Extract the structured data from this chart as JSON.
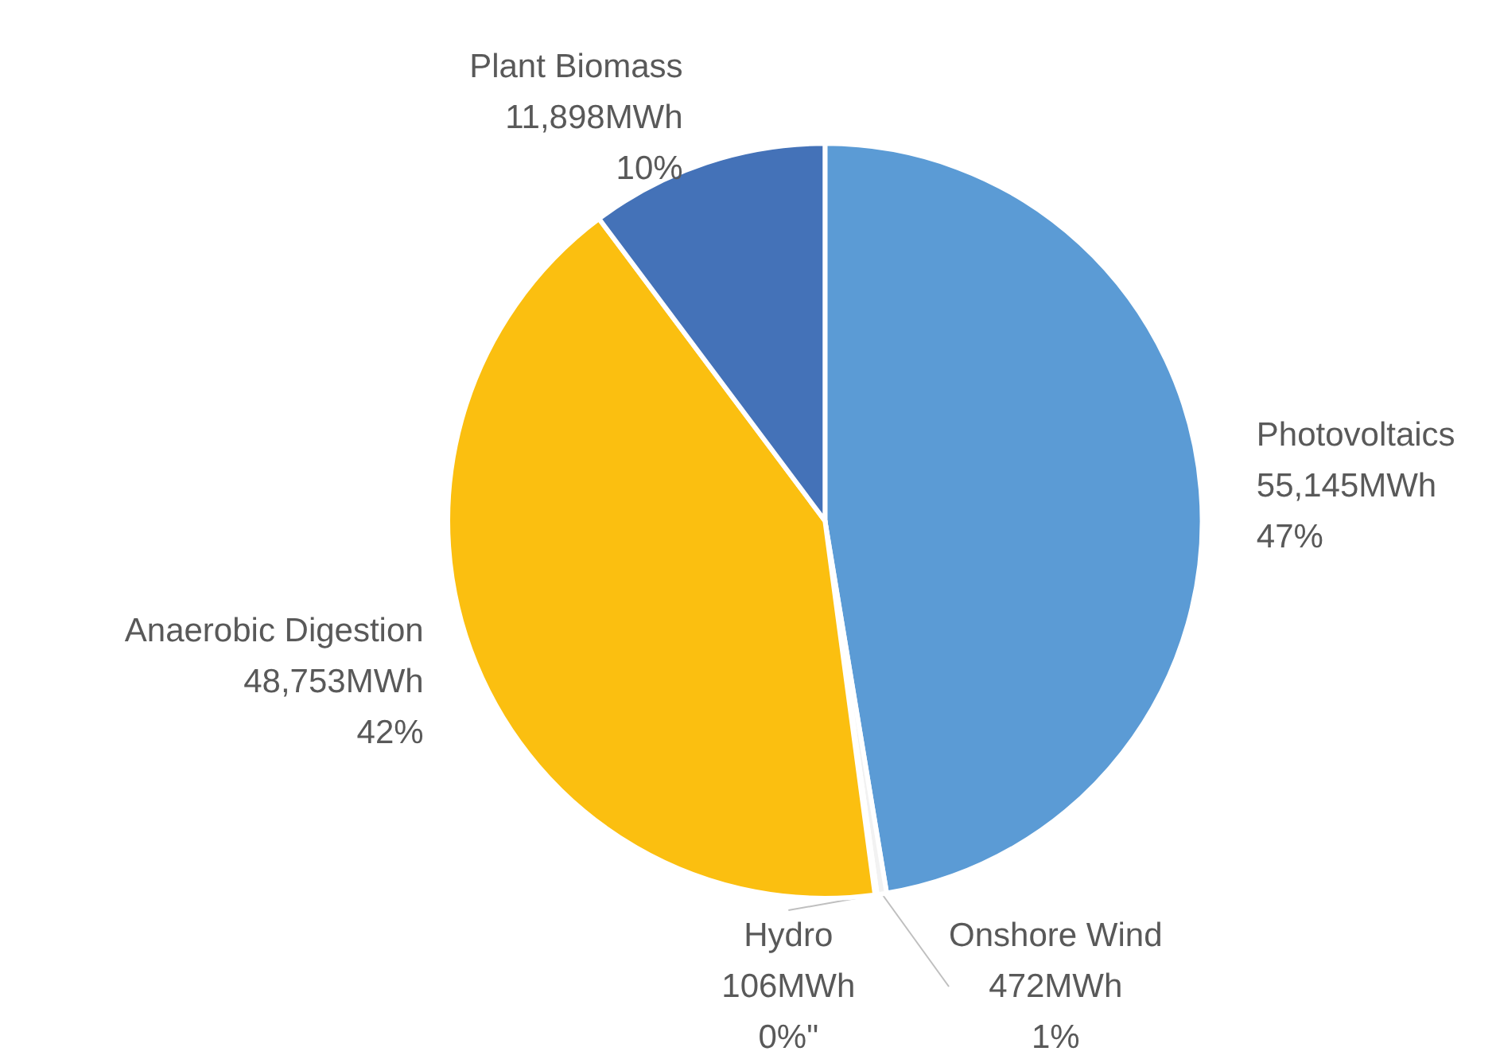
{
  "chart_data": {
    "type": "pie",
    "categories": [
      "Photovoltaics",
      "Onshore Wind",
      "Hydro",
      "Anaerobic Digestion",
      "Plant Biomass"
    ],
    "values": [
      55145,
      472,
      106,
      48753,
      11898
    ],
    "colors": [
      "#5b9bd5",
      "#f2f2f2",
      "#f2f2f2",
      "#fbbf10",
      "#4472b8"
    ],
    "value_labels": [
      "55,145MWh\n47%",
      "472MWh\n1%",
      "106MWh\n0%\"",
      "48,753MWh\n42%",
      "11,898MWh\n10%"
    ],
    "legend": false
  }
}
